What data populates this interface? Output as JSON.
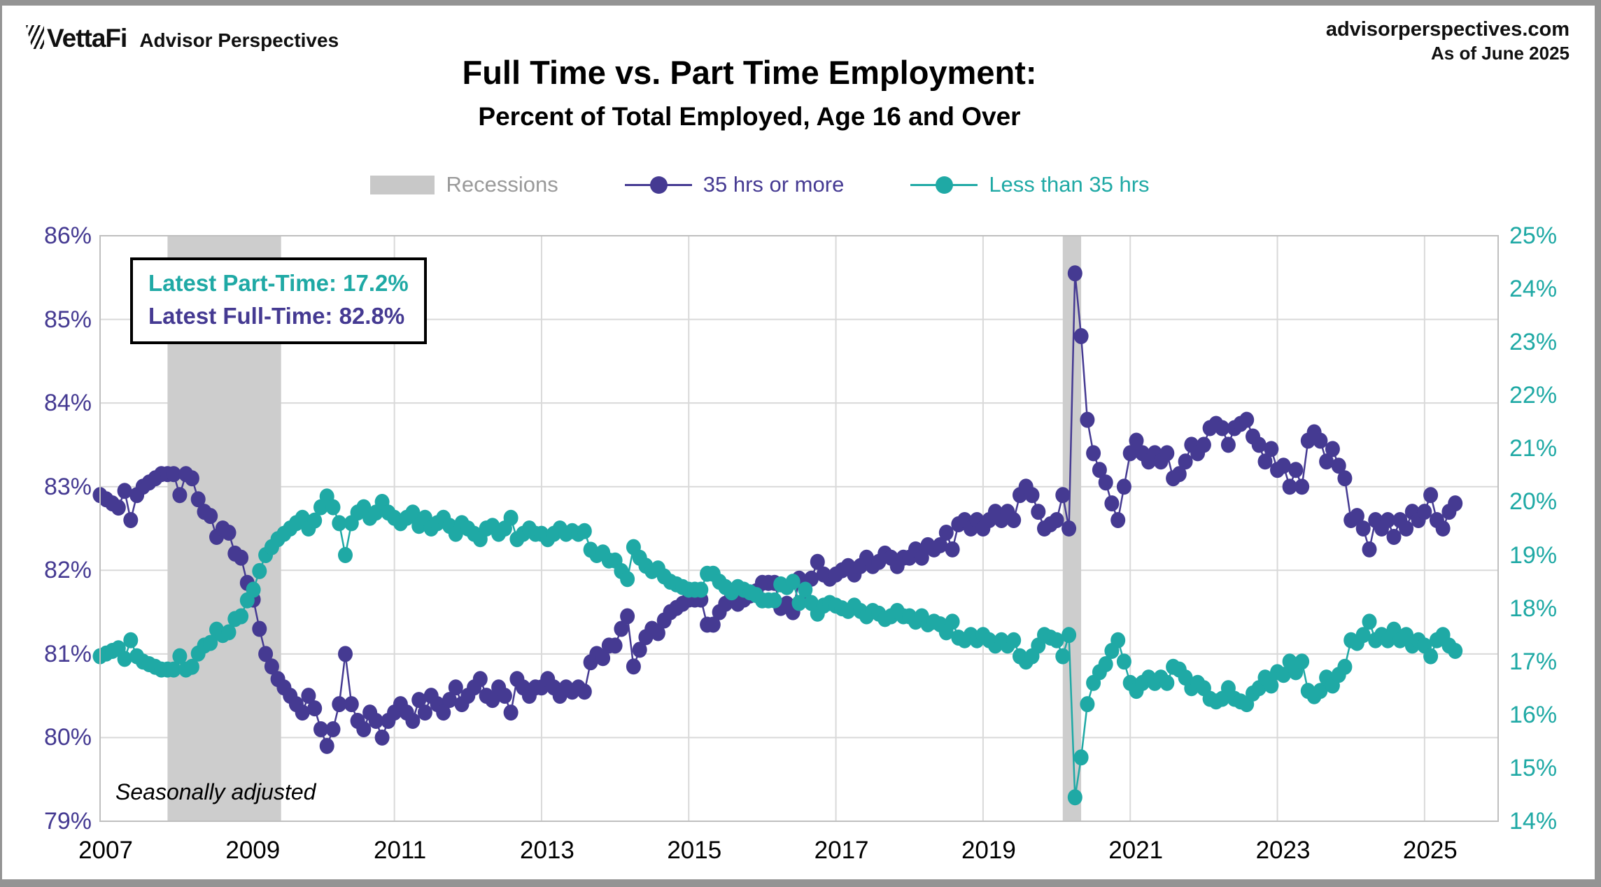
{
  "header": {
    "brand": "VettaFi",
    "brand_suffix": "Advisor Perspectives",
    "source_line1": "advisorperspectives.com",
    "source_line2": "As of June 2025"
  },
  "title": {
    "line1": "Full Time vs. Part Time Employment:",
    "line2": "Percent of Total Employed, Age 16 and Over"
  },
  "legend": {
    "recessions": {
      "label": "Recessions",
      "swatch_color": "#c8c8c8",
      "text_color": "#9a9a9a"
    },
    "full_time": {
      "label": "35 hrs or more",
      "color": "#453A92"
    },
    "part_time": {
      "label": "Less than 35 hrs",
      "color": "#1FA9A5"
    }
  },
  "annotation": {
    "line1": "Latest Part-Time: 17.2%",
    "line2": "Latest Full-Time: 82.8%",
    "line1_color": "#1FA9A5",
    "line2_color": "#453A92"
  },
  "footnote": "Seasonally adjusted",
  "colors": {
    "purple": "#453A92",
    "teal": "#1FA9A5",
    "recession_band": "#CDCDCD",
    "gridline": "#D9D9D9",
    "plot_border": "#BFBFBF"
  },
  "chart_data": {
    "type": "line",
    "title": "Full Time vs. Part Time Employment: Percent of Total Employed, Age 16 and Over",
    "x_start": {
      "year": 2007,
      "month": 1
    },
    "x_end": {
      "year": 2025,
      "month": 6
    },
    "x_domain": [
      2007,
      2026
    ],
    "x_ticks": [
      2007,
      2009,
      2011,
      2013,
      2015,
      2017,
      2019,
      2021,
      2023,
      2025
    ],
    "left_axis": {
      "min": 79,
      "max": 86,
      "ticks": [
        "86%",
        "85%",
        "84%",
        "83%",
        "82%",
        "81%",
        "80%",
        "79%"
      ],
      "color": "#453A92"
    },
    "right_axis": {
      "min": 14,
      "max": 25,
      "ticks": [
        "25%",
        "24%",
        "23%",
        "22%",
        "21%",
        "20%",
        "19%",
        "18%",
        "17%",
        "16%",
        "15%",
        "14%"
      ],
      "color": "#1FA9A5"
    },
    "grid": true,
    "recessions": [
      {
        "start": 2007.917,
        "end": 2009.46
      },
      {
        "start": 2020.083,
        "end": 2020.333
      }
    ],
    "series": [
      {
        "name": "35 hrs or more",
        "axis": "left",
        "color": "#453A92",
        "values": [
          82.9,
          82.85,
          82.8,
          82.75,
          82.95,
          82.6,
          82.9,
          83.0,
          83.05,
          83.1,
          83.15,
          83.15,
          83.15,
          82.9,
          83.15,
          83.1,
          82.85,
          82.7,
          82.65,
          82.4,
          82.5,
          82.45,
          82.2,
          82.15,
          81.85,
          81.65,
          81.3,
          81.0,
          80.85,
          80.7,
          80.6,
          80.5,
          80.4,
          80.3,
          80.5,
          80.35,
          80.1,
          79.9,
          80.1,
          80.4,
          81.0,
          80.4,
          80.2,
          80.1,
          80.3,
          80.2,
          80.0,
          80.2,
          80.3,
          80.4,
          80.3,
          80.2,
          80.45,
          80.3,
          80.5,
          80.4,
          80.3,
          80.45,
          80.6,
          80.4,
          80.5,
          80.6,
          80.7,
          80.5,
          80.45,
          80.6,
          80.5,
          80.3,
          80.7,
          80.6,
          80.5,
          80.6,
          80.6,
          80.7,
          80.6,
          80.5,
          80.6,
          80.55,
          80.6,
          80.55,
          80.9,
          81.0,
          80.95,
          81.1,
          81.1,
          81.3,
          81.45,
          80.85,
          81.05,
          81.2,
          81.3,
          81.25,
          81.4,
          81.5,
          81.55,
          81.6,
          81.65,
          81.65,
          81.65,
          81.35,
          81.35,
          81.5,
          81.6,
          81.7,
          81.6,
          81.65,
          81.7,
          81.75,
          81.85,
          81.85,
          81.85,
          81.55,
          81.6,
          81.5,
          81.9,
          81.65,
          81.9,
          82.1,
          81.95,
          81.9,
          81.95,
          82.0,
          82.05,
          81.95,
          82.05,
          82.15,
          82.05,
          82.1,
          82.2,
          82.15,
          82.05,
          82.15,
          82.15,
          82.25,
          82.15,
          82.3,
          82.25,
          82.3,
          82.45,
          82.25,
          82.55,
          82.6,
          82.5,
          82.6,
          82.5,
          82.6,
          82.7,
          82.6,
          82.7,
          82.6,
          82.9,
          83.0,
          82.9,
          82.7,
          82.5,
          82.55,
          82.6,
          82.9,
          82.5,
          85.55,
          84.8,
          83.8,
          83.4,
          83.2,
          83.05,
          82.8,
          82.6,
          83.0,
          83.4,
          83.55,
          83.4,
          83.3,
          83.4,
          83.3,
          83.4,
          83.1,
          83.15,
          83.3,
          83.5,
          83.4,
          83.5,
          83.7,
          83.75,
          83.7,
          83.5,
          83.7,
          83.75,
          83.8,
          83.6,
          83.5,
          83.3,
          83.45,
          83.2,
          83.25,
          83.0,
          83.2,
          83.0,
          83.55,
          83.65,
          83.55,
          83.3,
          83.45,
          83.25,
          83.1,
          82.6,
          82.65,
          82.5,
          82.25,
          82.6,
          82.5,
          82.6,
          82.4,
          82.6,
          82.5,
          82.7,
          82.6,
          82.7,
          82.9,
          82.6,
          82.5,
          82.7,
          82.8
        ]
      },
      {
        "name": "Less than 35 hrs",
        "axis": "right",
        "color": "#1FA9A5",
        "values": [
          17.1,
          17.15,
          17.2,
          17.25,
          17.05,
          17.4,
          17.1,
          17.0,
          16.95,
          16.9,
          16.85,
          16.85,
          16.85,
          17.1,
          16.85,
          16.9,
          17.15,
          17.3,
          17.35,
          17.6,
          17.5,
          17.55,
          17.8,
          17.85,
          18.15,
          18.35,
          18.7,
          19.0,
          19.15,
          19.3,
          19.4,
          19.5,
          19.6,
          19.7,
          19.5,
          19.65,
          19.9,
          20.1,
          19.9,
          19.6,
          19.0,
          19.6,
          19.8,
          19.9,
          19.7,
          19.8,
          20.0,
          19.8,
          19.7,
          19.6,
          19.7,
          19.8,
          19.55,
          19.7,
          19.5,
          19.6,
          19.7,
          19.55,
          19.4,
          19.6,
          19.5,
          19.4,
          19.3,
          19.5,
          19.55,
          19.4,
          19.5,
          19.7,
          19.3,
          19.4,
          19.5,
          19.4,
          19.4,
          19.3,
          19.4,
          19.5,
          19.4,
          19.45,
          19.4,
          19.45,
          19.1,
          19.0,
          19.05,
          18.9,
          18.9,
          18.7,
          18.55,
          19.15,
          18.95,
          18.8,
          18.7,
          18.75,
          18.6,
          18.5,
          18.45,
          18.4,
          18.35,
          18.35,
          18.35,
          18.65,
          18.65,
          18.5,
          18.4,
          18.3,
          18.4,
          18.35,
          18.3,
          18.25,
          18.15,
          18.15,
          18.15,
          18.45,
          18.4,
          18.5,
          18.1,
          18.35,
          18.1,
          17.9,
          18.05,
          18.1,
          18.05,
          18.0,
          17.95,
          18.05,
          17.95,
          17.85,
          17.95,
          17.9,
          17.8,
          17.85,
          17.95,
          17.85,
          17.85,
          17.75,
          17.85,
          17.7,
          17.75,
          17.7,
          17.55,
          17.75,
          17.45,
          17.4,
          17.5,
          17.4,
          17.5,
          17.4,
          17.3,
          17.4,
          17.3,
          17.4,
          17.1,
          17.0,
          17.1,
          17.3,
          17.5,
          17.45,
          17.4,
          17.1,
          17.5,
          14.45,
          15.2,
          16.2,
          16.6,
          16.8,
          16.95,
          17.2,
          17.4,
          17.0,
          16.6,
          16.45,
          16.6,
          16.7,
          16.6,
          16.7,
          16.6,
          16.9,
          16.85,
          16.7,
          16.5,
          16.6,
          16.5,
          16.3,
          16.25,
          16.3,
          16.5,
          16.3,
          16.25,
          16.2,
          16.4,
          16.5,
          16.7,
          16.55,
          16.8,
          16.75,
          17.0,
          16.8,
          17.0,
          16.45,
          16.35,
          16.45,
          16.7,
          16.55,
          16.75,
          16.9,
          17.4,
          17.35,
          17.5,
          17.75,
          17.4,
          17.5,
          17.4,
          17.6,
          17.4,
          17.5,
          17.3,
          17.4,
          17.3,
          17.1,
          17.4,
          17.5,
          17.3,
          17.2
        ]
      }
    ]
  }
}
